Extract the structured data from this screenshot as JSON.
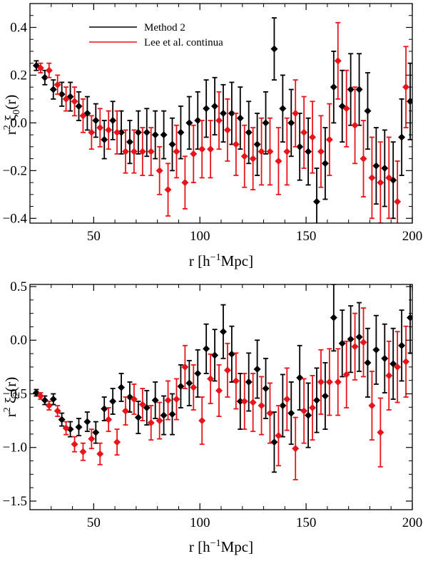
{
  "figure": {
    "panels_description": "Two stacked panels sharing x axis r [h^-1 Mpc]"
  },
  "colors": {
    "method2": "#000000",
    "lee": "#e8141a",
    "axis": "#000000"
  },
  "legend": {
    "entries": [
      {
        "label": "Method 2",
        "color": "#000000"
      },
      {
        "label": "Lee et al. continua",
        "color": "#e8141a"
      }
    ]
  },
  "chart_data": [
    {
      "type": "scatter",
      "id": "monopole",
      "ylabel_prefix": "r",
      "ylabel_sup": "2",
      "ylabel_symbol": " ξ",
      "ylabel_sub": "0",
      "ylabel_suffix": "(r)",
      "xlabel_main": "r [h",
      "xlabel_sup": "−1",
      "xlabel_tail": "Mpc]",
      "xlim": [
        20,
        200
      ],
      "ylim": [
        -0.42,
        0.5
      ],
      "xticks": [
        50,
        100,
        150,
        200
      ],
      "xtick_labels": [
        "50",
        "100",
        "150",
        "200"
      ],
      "yticks": [
        -0.4,
        -0.2,
        0.0,
        0.2,
        0.4
      ],
      "ytick_labels": [
        "−0.4",
        "−0.2",
        "0.0",
        "0.2",
        "0.4"
      ],
      "series": [
        {
          "name": "Method 2",
          "color": "#000000",
          "x": [
            23,
            27,
            31,
            35,
            39,
            43,
            47,
            51,
            55,
            59,
            63,
            67,
            71,
            75,
            79,
            83,
            87,
            91,
            95,
            99,
            103,
            107,
            111,
            115,
            119,
            123,
            127,
            131,
            135,
            139,
            143,
            147,
            151,
            155,
            159,
            163,
            167,
            171,
            175,
            179,
            183,
            187,
            191,
            195,
            199
          ],
          "y": [
            0.24,
            0.19,
            0.14,
            0.12,
            0.11,
            0.07,
            0.04,
            0.01,
            -0.07,
            0.01,
            -0.04,
            -0.08,
            -0.04,
            -0.04,
            -0.05,
            -0.05,
            -0.09,
            -0.04,
            0.0,
            0.01,
            0.06,
            0.07,
            0.04,
            0.04,
            0.02,
            -0.04,
            -0.09,
            0.0,
            0.31,
            0.06,
            0.0,
            -0.1,
            -0.12,
            -0.33,
            -0.17,
            0.15,
            0.07,
            0.14,
            0.14,
            0.05,
            -0.18,
            -0.19,
            -0.24,
            -0.06,
            0.09
          ],
          "err": [
            0.02,
            0.03,
            0.04,
            0.05,
            0.06,
            0.06,
            0.07,
            0.07,
            0.08,
            0.08,
            0.09,
            0.09,
            0.09,
            0.1,
            0.1,
            0.1,
            0.11,
            0.11,
            0.11,
            0.12,
            0.12,
            0.12,
            0.12,
            0.13,
            0.13,
            0.13,
            0.13,
            0.13,
            0.13,
            0.14,
            0.14,
            0.14,
            0.14,
            0.14,
            0.15,
            0.15,
            0.15,
            0.15,
            0.15,
            0.16,
            0.16,
            0.16,
            0.16,
            0.16,
            0.16
          ]
        },
        {
          "name": "Lee et al. continua",
          "color": "#e8141a",
          "x": [
            25,
            29,
            33,
            37,
            41,
            45,
            49,
            53,
            57,
            61,
            65,
            69,
            73,
            77,
            81,
            85,
            89,
            93,
            97,
            101,
            105,
            109,
            113,
            117,
            121,
            125,
            129,
            133,
            137,
            141,
            145,
            149,
            153,
            157,
            161,
            165,
            169,
            173,
            177,
            181,
            185,
            189,
            193,
            197
          ],
          "y": [
            0.23,
            0.22,
            0.16,
            0.1,
            0.09,
            0.03,
            -0.04,
            -0.02,
            -0.03,
            -0.04,
            -0.12,
            -0.12,
            -0.12,
            -0.12,
            -0.2,
            -0.28,
            -0.12,
            -0.25,
            -0.13,
            -0.11,
            -0.11,
            0.01,
            -0.03,
            -0.09,
            -0.14,
            -0.15,
            -0.12,
            -0.12,
            -0.16,
            -0.12,
            0.04,
            -0.04,
            -0.06,
            -0.12,
            -0.07,
            0.26,
            0.06,
            -0.01,
            -0.15,
            -0.23,
            -0.25,
            -0.23,
            -0.33,
            0.15
          ],
          "err": [
            0.02,
            0.03,
            0.04,
            0.05,
            0.06,
            0.07,
            0.07,
            0.08,
            0.08,
            0.09,
            0.09,
            0.09,
            0.1,
            0.1,
            0.1,
            0.11,
            0.11,
            0.11,
            0.12,
            0.12,
            0.12,
            0.12,
            0.13,
            0.13,
            0.13,
            0.13,
            0.14,
            0.14,
            0.14,
            0.14,
            0.14,
            0.15,
            0.15,
            0.15,
            0.15,
            0.16,
            0.16,
            0.16,
            0.16,
            0.17,
            0.17,
            0.17,
            0.17,
            0.17
          ]
        }
      ]
    },
    {
      "type": "scatter",
      "id": "quadrupole",
      "ylabel_prefix": "r",
      "ylabel_sup": "2",
      "ylabel_symbol": " ξ",
      "ylabel_sub": "2",
      "ylabel_suffix": "(r)",
      "xlabel_main": "r [h",
      "xlabel_sup": "−1",
      "xlabel_tail": "Mpc]",
      "xlim": [
        20,
        200
      ],
      "ylim": [
        -1.58,
        0.52
      ],
      "xticks": [
        50,
        100,
        150,
        200
      ],
      "xtick_labels": [
        "50",
        "100",
        "150",
        "200"
      ],
      "yticks": [
        -1.5,
        -1.0,
        -0.5,
        0.0,
        0.5
      ],
      "ytick_labels": [
        "−1.5",
        "−1.0",
        "−0.5",
        "0.0",
        "0.5"
      ],
      "series": [
        {
          "name": "Method 2",
          "color": "#000000",
          "x": [
            23,
            27,
            31,
            35,
            39,
            43,
            47,
            51,
            55,
            59,
            63,
            67,
            71,
            75,
            79,
            83,
            87,
            91,
            95,
            99,
            103,
            107,
            111,
            115,
            119,
            123,
            127,
            131,
            135,
            139,
            143,
            147,
            151,
            155,
            159,
            163,
            167,
            171,
            175,
            179,
            183,
            187,
            191,
            195,
            199
          ],
          "y": [
            -0.49,
            -0.56,
            -0.55,
            -0.74,
            -0.83,
            -0.81,
            -0.76,
            -0.86,
            -0.64,
            -0.57,
            -0.44,
            -0.53,
            -0.72,
            -0.63,
            -0.56,
            -0.7,
            -0.69,
            -0.43,
            -0.4,
            -0.31,
            -0.08,
            -0.14,
            0.08,
            -0.13,
            -0.57,
            -0.39,
            -0.27,
            -0.45,
            -0.95,
            -0.61,
            -0.68,
            -0.35,
            -0.7,
            -0.56,
            -0.52,
            0.21,
            -0.03,
            0.01,
            0.03,
            -0.21,
            -0.09,
            -0.17,
            -0.22,
            -0.05,
            0.21
          ],
          "err": [
            0.03,
            0.04,
            0.05,
            0.06,
            0.07,
            0.08,
            0.09,
            0.1,
            0.11,
            0.12,
            0.13,
            0.14,
            0.15,
            0.16,
            0.17,
            0.18,
            0.19,
            0.2,
            0.21,
            0.22,
            0.23,
            0.24,
            0.25,
            0.26,
            0.26,
            0.27,
            0.27,
            0.28,
            0.28,
            0.29,
            0.29,
            0.3,
            0.3,
            0.3,
            0.31,
            0.31,
            0.31,
            0.31,
            0.32,
            0.32,
            0.32,
            0.32,
            0.33,
            0.33,
            0.33
          ]
        },
        {
          "name": "Lee et al. continua",
          "color": "#e8141a",
          "x": [
            25,
            29,
            33,
            37,
            41,
            45,
            49,
            53,
            57,
            61,
            65,
            69,
            73,
            77,
            81,
            85,
            89,
            93,
            97,
            101,
            105,
            109,
            113,
            117,
            121,
            125,
            129,
            133,
            137,
            141,
            145,
            149,
            153,
            157,
            161,
            165,
            169,
            173,
            177,
            181,
            185,
            189,
            193,
            197
          ],
          "y": [
            -0.52,
            -0.61,
            -0.66,
            -0.82,
            -0.97,
            -1.04,
            -0.92,
            -1.06,
            -0.74,
            -0.95,
            -0.66,
            -0.55,
            -0.6,
            -0.77,
            -0.75,
            -0.56,
            -0.55,
            -0.25,
            -0.44,
            -0.75,
            -0.36,
            -0.47,
            -0.28,
            -0.38,
            -0.57,
            -0.58,
            -0.61,
            -0.68,
            -0.89,
            -0.55,
            -1.01,
            -0.66,
            -0.63,
            -0.39,
            -0.39,
            -0.39,
            -0.32,
            -0.06,
            -0.02,
            -0.61,
            -0.86,
            -0.33,
            -0.25,
            -0.2
          ],
          "err": [
            0.03,
            0.04,
            0.05,
            0.06,
            0.07,
            0.08,
            0.09,
            0.1,
            0.11,
            0.12,
            0.13,
            0.14,
            0.15,
            0.16,
            0.17,
            0.18,
            0.19,
            0.2,
            0.21,
            0.22,
            0.23,
            0.24,
            0.25,
            0.26,
            0.26,
            0.27,
            0.27,
            0.28,
            0.28,
            0.29,
            0.29,
            0.3,
            0.3,
            0.3,
            0.31,
            0.31,
            0.31,
            0.31,
            0.32,
            0.32,
            0.32,
            0.32,
            0.33,
            0.33
          ]
        }
      ]
    }
  ]
}
